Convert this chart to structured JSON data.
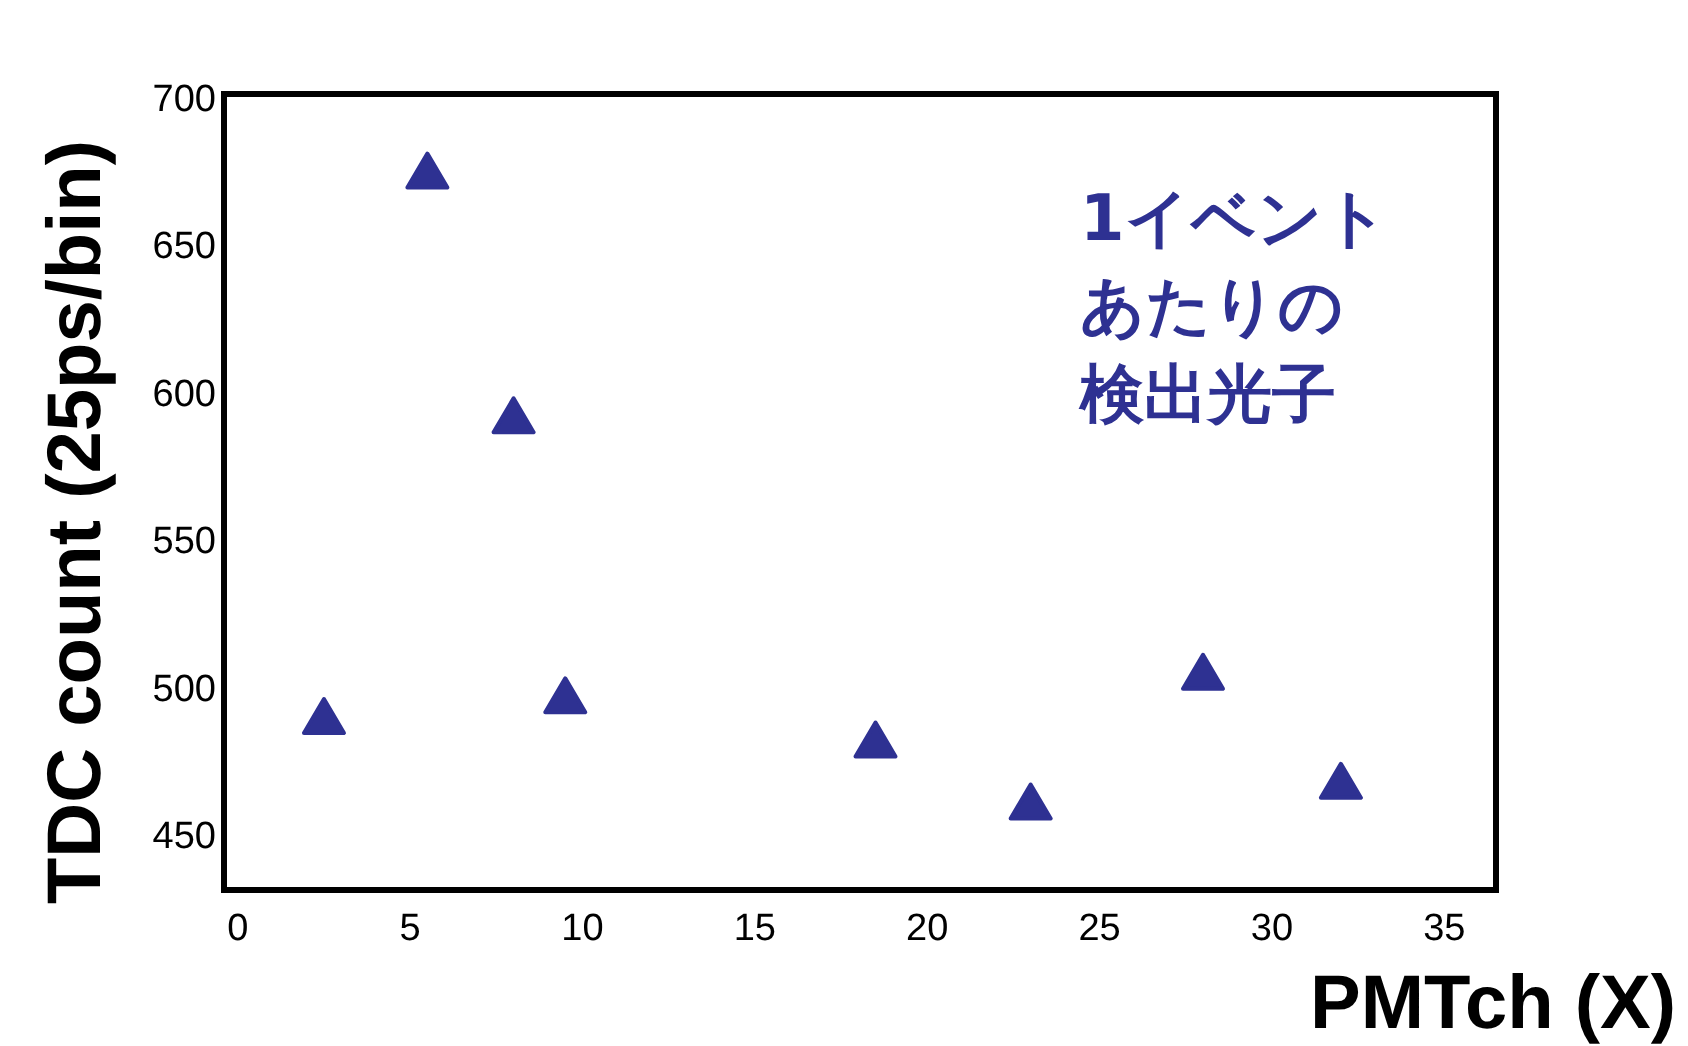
{
  "chart_data": {
    "type": "scatter",
    "xlabel": "PMTch (X)",
    "ylabel": "TDC count (25ps/bin)",
    "annotations": [
      "1イベント",
      "あたりの",
      "検出光子"
    ],
    "marker": "triangle",
    "grid": false,
    "xlim": [
      -0.4,
      36.5
    ],
    "ylim": [
      431,
      701
    ],
    "xticks": [
      0,
      5,
      10,
      15,
      20,
      25,
      30,
      35
    ],
    "yticks": [
      450,
      500,
      550,
      600,
      650,
      700
    ],
    "series": [
      {
        "color": "#2e3192",
        "x": [
          2.5,
          5.5,
          8,
          9.5,
          18.5,
          23,
          28,
          32
        ],
        "values": [
          489,
          674,
          591,
          496,
          481,
          460,
          504,
          467
        ]
      }
    ]
  }
}
